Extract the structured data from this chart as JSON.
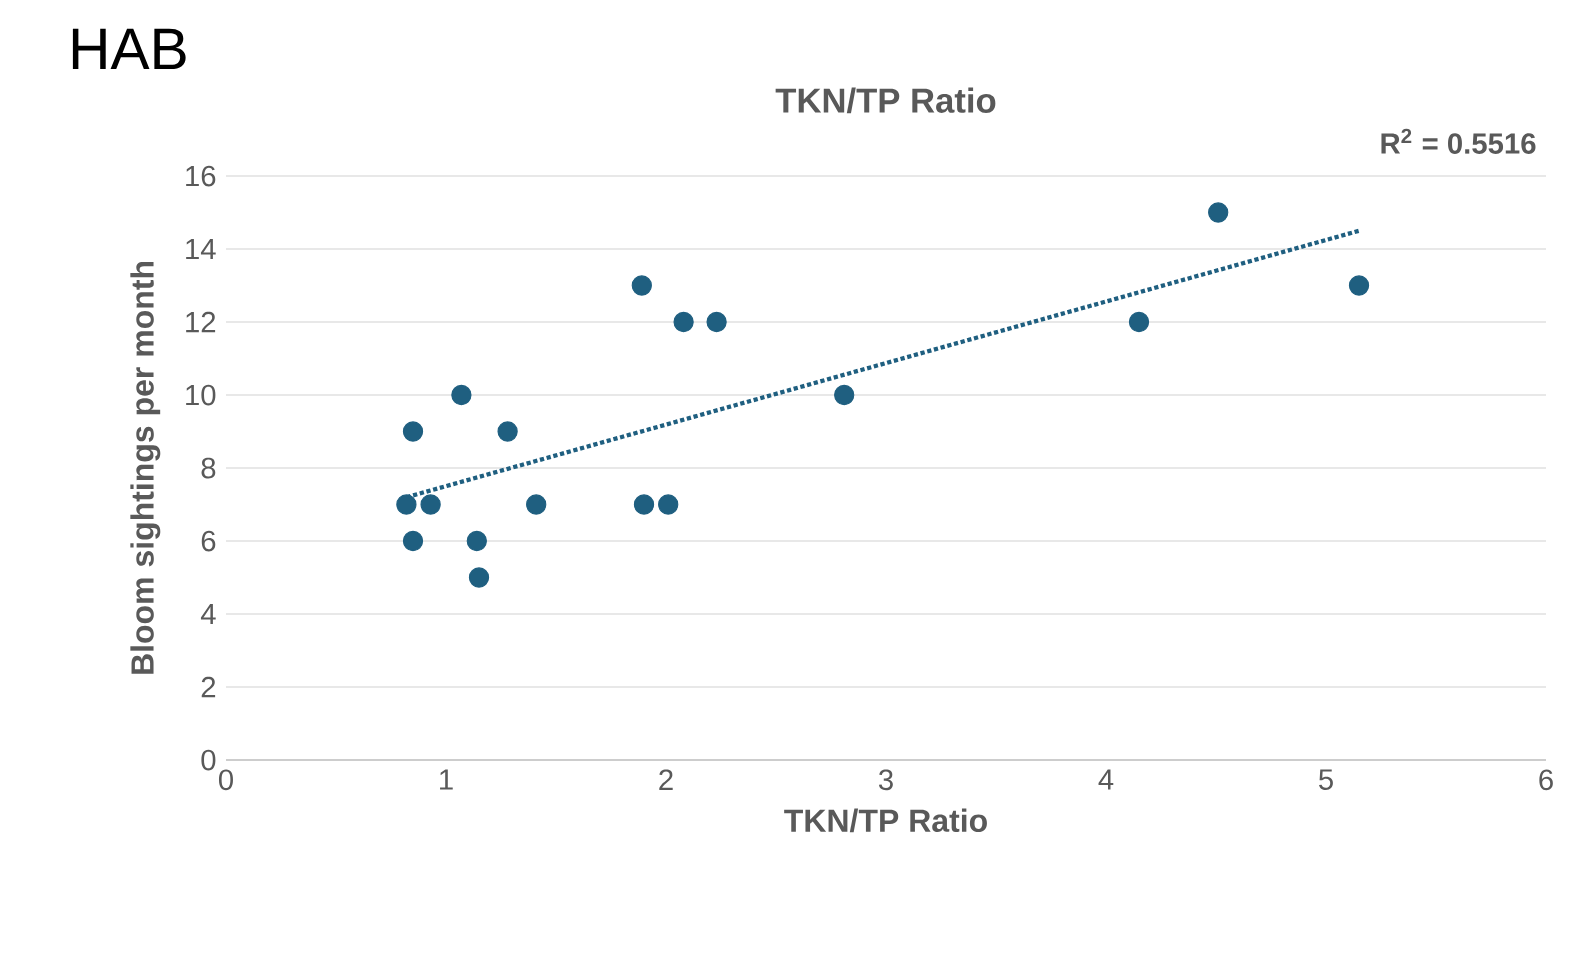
{
  "chart_data": {
    "type": "scatter",
    "title": "TKN/TP Ratio",
    "xlabel": "TKN/TP Ratio",
    "ylabel": "Bloom sightings per month",
    "annotations": [
      "HAB",
      "R$^{2}$ = 0.5516"
    ],
    "series": [
      {
        "color": "#1f5f80",
        "marker": "circle",
        "x": [
          0.82,
          0.85,
          0.85,
          0.93,
          1.07,
          1.14,
          1.15,
          1.28,
          1.41,
          1.89,
          1.9,
          2.01,
          2.08,
          2.23,
          2.81,
          4.15,
          4.51,
          5.15
        ],
        "values": [
          7,
          9,
          6,
          7,
          10,
          6,
          5,
          9,
          7,
          13,
          7,
          7,
          12,
          12,
          10,
          12,
          15,
          13
        ]
      },
      {
        "type": "line",
        "color": "#1f5f80",
        "marker": "none",
        "line_style": "dotted",
        "x": [
          0.82,
          5.15
        ],
        "values": [
          7.2,
          14.5
        ]
      }
    ],
    "xlim": [
      0,
      6
    ],
    "ylim": [
      0,
      16
    ],
    "xticks": [
      0,
      1,
      2,
      3,
      4,
      5,
      6
    ],
    "yticks": [
      0,
      2,
      4,
      6,
      8,
      10,
      12,
      14,
      16
    ],
    "grid": "y"
  }
}
